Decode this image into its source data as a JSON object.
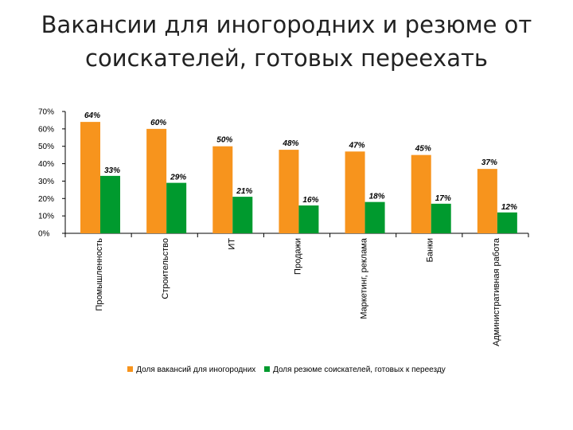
{
  "title": {
    "line1": "Вакансии для иногородних и резюме от",
    "line2": "соискателей, готовых переехать"
  },
  "colors": {
    "vacancies": "#f7941d",
    "resumes": "#009a2e"
  },
  "chart_data": {
    "type": "bar",
    "categories": [
      "Промышленность",
      "Строительство",
      "ИТ",
      "Продажи",
      "Маркетинг, реклама",
      "Банки",
      "Административная работа"
    ],
    "series": [
      {
        "name": "Доля вакансий для иногородних",
        "values": [
          64,
          60,
          50,
          48,
          47,
          45,
          37
        ],
        "labels": [
          "64%",
          "60%",
          "50%",
          "48%",
          "47%",
          "45%",
          "37%"
        ]
      },
      {
        "name": "Доля резюме соискателей, готовых к переезду",
        "values": [
          33,
          29,
          21,
          16,
          18,
          17,
          12
        ],
        "labels": [
          "33%",
          "29%",
          "21%",
          "16%",
          "18%",
          "17%",
          "12%"
        ]
      }
    ],
    "ylim": [
      0,
      70
    ],
    "yticks": [
      "0%",
      "10%",
      "20%",
      "30%",
      "40%",
      "50%",
      "60%",
      "70%"
    ],
    "ytick_values": [
      0,
      10,
      20,
      30,
      40,
      50,
      60,
      70
    ],
    "grid": false,
    "legend_position": "bottom"
  }
}
